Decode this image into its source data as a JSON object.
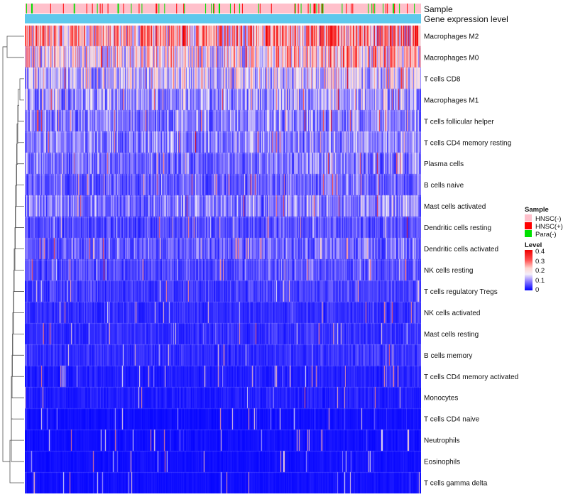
{
  "chart_data": {
    "type": "heatmap",
    "title": "",
    "annotation_rows": [
      {
        "name": "Sample",
        "label": "Sample"
      },
      {
        "name": "Gene expression level",
        "label": "Gene expression level",
        "color": "#5ec8ec"
      }
    ],
    "rows": [
      "Macrophages M2",
      "Macrophages M0",
      "T cells CD8",
      "Macrophages M1",
      "T cells follicular helper",
      "T cells CD4 memory resting",
      "Plasma cells",
      "B cells naive",
      "Mast cells activated",
      "Dendritic cells resting",
      "Dendritic cells activated",
      "NK cells resting",
      "T cells regulatory  Tregs",
      "NK cells activated",
      "Mast cells resting",
      "B cells memory",
      "T cells CD4 memory activated",
      "Monocytes",
      "T cells CD4 naive",
      "Neutrophils",
      "Eosinophils",
      "T cells gamma delta"
    ],
    "row_mean_levels": [
      0.22,
      0.16,
      0.12,
      0.09,
      0.08,
      0.08,
      0.07,
      0.06,
      0.08,
      0.05,
      0.06,
      0.05,
      0.04,
      0.03,
      0.03,
      0.03,
      0.02,
      0.02,
      0.01,
      0.01,
      0.01,
      0.01
    ],
    "n_columns": 560,
    "sample_groups": [
      {
        "name": "HNSC(-)",
        "color": "#ffc0cb",
        "proportion": 0.86
      },
      {
        "name": "HNSC(+)",
        "color": "#ff0000",
        "proportion": 0.05
      },
      {
        "name": "Para(-)",
        "color": "#00e000",
        "proportion": 0.09
      }
    ],
    "color_scale": {
      "name": "Level",
      "min": 0,
      "max": 0.4,
      "stops": [
        {
          "value": 0,
          "color": "#0000ff"
        },
        {
          "value": 0.1,
          "color": "#9c8cff"
        },
        {
          "value": 0.15,
          "color": "#f4eef8"
        },
        {
          "value": 0.2,
          "color": "#ffd6d0"
        },
        {
          "value": 0.3,
          "color": "#ff5050"
        },
        {
          "value": 0.4,
          "color": "#ee0000"
        }
      ],
      "ticks": [
        "0.4",
        "0.3",
        "0.2",
        "0.1",
        "0"
      ]
    },
    "legend": {
      "sample_title": "Sample",
      "level_title": "Level",
      "position": "right"
    },
    "dendrogram": "row clustering on left"
  }
}
